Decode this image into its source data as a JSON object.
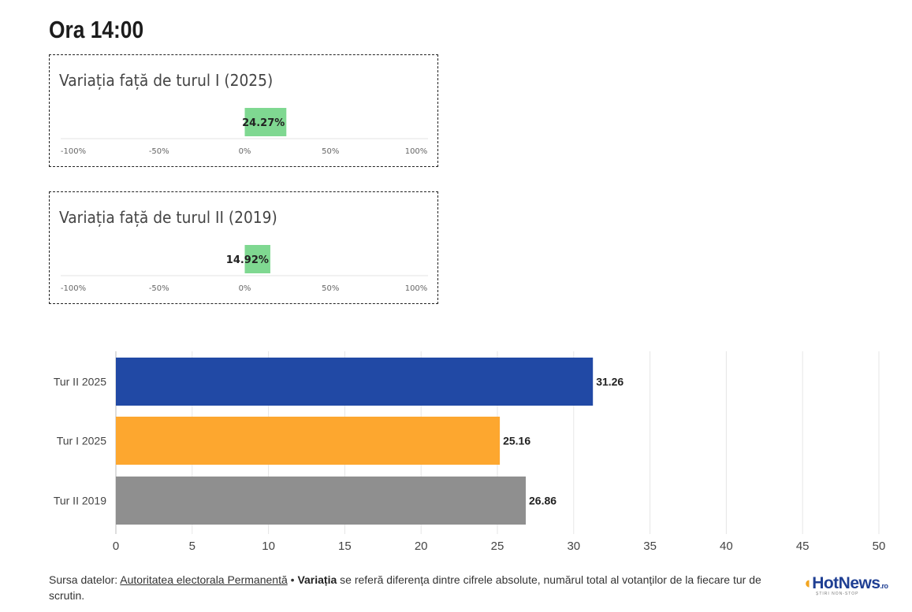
{
  "header": {
    "title": "Ora 14:00"
  },
  "variation_cards": [
    {
      "title": "Variația față de turul I (2025)",
      "value": 24.27,
      "value_label": "24.27%",
      "ticks": [
        "-100%",
        "-50%",
        "0%",
        "50%",
        "100%"
      ],
      "range": [
        -100,
        100
      ],
      "bar_color": "#7fd891"
    },
    {
      "title": "Variația față de turul II (2019)",
      "value": 14.92,
      "value_label": "14.92%",
      "ticks": [
        "-100%",
        "-50%",
        "0%",
        "50%",
        "100%"
      ],
      "range": [
        -100,
        100
      ],
      "bar_color": "#7fd891"
    }
  ],
  "chart_data": {
    "type": "bar",
    "orientation": "horizontal",
    "categories": [
      "Tur II 2025",
      "Tur I 2025",
      "Tur II 2019"
    ],
    "values": [
      31.26,
      25.16,
      26.86
    ],
    "value_labels": [
      "31.26",
      "25.16",
      "26.86"
    ],
    "colors": [
      "#2149a5",
      "#fda72f",
      "#8f8f8f"
    ],
    "xlim": [
      0,
      50
    ],
    "xticks": [
      0,
      5,
      10,
      15,
      20,
      25,
      30,
      35,
      40,
      45,
      50
    ],
    "grid": true
  },
  "footer": {
    "source_prefix": "Sursa datelor: ",
    "source_link": "Autoritatea electorala Permanentă",
    "separator": " • ",
    "bold_term": "Variația",
    "note": " se referă diferența dintre cifrele absolute, numărul total al votanților de la fiecare tur de scrutin."
  },
  "logo": {
    "main": "HotNews",
    "suffix": ".ro",
    "tagline": "ȘTIRI NON-STOP"
  }
}
